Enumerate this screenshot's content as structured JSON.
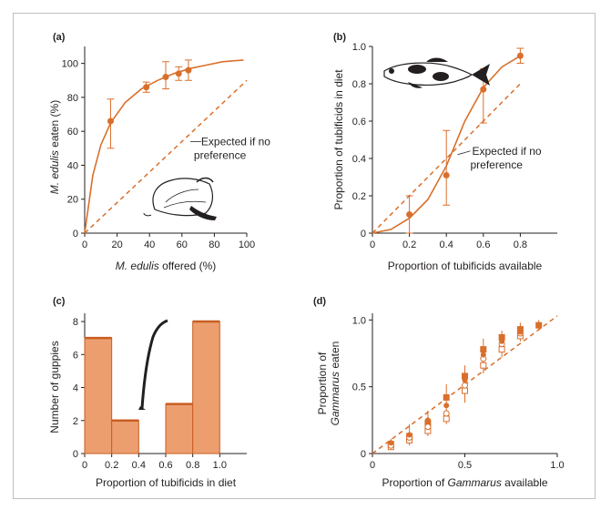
{
  "colors": {
    "accent": "#d96f2b",
    "bar_fill": "#ec9e6f",
    "bar_stroke": "#c95e22",
    "axis": "#231f20",
    "frame": "#bfbfbf"
  },
  "chart_data": [
    {
      "id": "a",
      "panel_label": "(a)",
      "type": "scatter",
      "xlabel_italic": "M. edulis",
      "xlabel_rest": " offered (%)",
      "ylabel_italic": "M. edulis",
      "ylabel_rest": " eaten (%)",
      "xlim": [
        0,
        100
      ],
      "ylim": [
        0,
        110
      ],
      "xticks": [
        0,
        20,
        40,
        60,
        80,
        100
      ],
      "yticks": [
        0,
        20,
        40,
        60,
        80,
        100
      ],
      "points": [
        {
          "x": 16,
          "y": 66,
          "lo": 50,
          "hi": 79
        },
        {
          "x": 38,
          "y": 86,
          "lo": 83,
          "hi": 89
        },
        {
          "x": 50,
          "y": 92,
          "lo": 85,
          "hi": 101
        },
        {
          "x": 58,
          "y": 94,
          "lo": 90,
          "hi": 98
        },
        {
          "x": 64,
          "y": 96,
          "lo": 90,
          "hi": 102
        }
      ],
      "fit_curve": [
        [
          0,
          0
        ],
        [
          5,
          34
        ],
        [
          10,
          52
        ],
        [
          16,
          65
        ],
        [
          25,
          77
        ],
        [
          35,
          85
        ],
        [
          45,
          90
        ],
        [
          55,
          94
        ],
        [
          65,
          97
        ],
        [
          75,
          99
        ],
        [
          85,
          101
        ],
        [
          98,
          102
        ]
      ],
      "expected_line": [
        [
          0,
          0
        ],
        [
          100,
          90
        ]
      ],
      "annotation_lines": [
        "Expected if no",
        "preference"
      ]
    },
    {
      "id": "b",
      "panel_label": "(b)",
      "type": "scatter",
      "xlabel": "Proportion of tubificids available",
      "ylabel": "Proportion of tubificids in diet",
      "xlim": [
        0,
        1.0
      ],
      "ylim": [
        0,
        1.0
      ],
      "xticks": [
        0,
        0.2,
        0.4,
        0.6,
        0.8
      ],
      "xticklabels": [
        "0",
        "0.2",
        "0.4",
        "0.6",
        "0.8"
      ],
      "yticks": [
        0,
        0.2,
        0.4,
        0.6,
        0.8,
        1.0
      ],
      "yticklabels": [
        "0",
        "0.2",
        "0.4",
        "0.6",
        "0.8",
        "1.0"
      ],
      "points": [
        {
          "x": 0.2,
          "y": 0.1,
          "lo": 0.0,
          "hi": 0.2
        },
        {
          "x": 0.4,
          "y": 0.31,
          "lo": 0.15,
          "hi": 0.55
        },
        {
          "x": 0.6,
          "y": 0.77,
          "lo": 0.59,
          "hi": 0.88
        },
        {
          "x": 0.8,
          "y": 0.95,
          "lo": 0.91,
          "hi": 0.99
        }
      ],
      "fit_curve": [
        [
          0,
          0
        ],
        [
          0.1,
          0.02
        ],
        [
          0.2,
          0.08
        ],
        [
          0.3,
          0.18
        ],
        [
          0.4,
          0.36
        ],
        [
          0.5,
          0.6
        ],
        [
          0.6,
          0.78
        ],
        [
          0.7,
          0.89
        ],
        [
          0.8,
          0.95
        ]
      ],
      "expected_line": [
        [
          0,
          0
        ],
        [
          0.8,
          0.8
        ]
      ],
      "annotation_lines": [
        "Expected if no",
        "preference"
      ]
    },
    {
      "id": "c",
      "panel_label": "(c)",
      "type": "bar",
      "xlabel": "Proportion of tubificids in diet",
      "ylabel": "Number of guppies",
      "xlim": [
        0,
        1.2
      ],
      "ylim": [
        0,
        8.5
      ],
      "xticks": [
        0,
        0.2,
        0.4,
        0.6,
        0.8,
        1.0
      ],
      "xticklabels": [
        "0",
        "0.2",
        "0.4",
        "0.6",
        "0.8",
        "1.0"
      ],
      "yticks": [
        0,
        2,
        4,
        6,
        8
      ],
      "bins": [
        {
          "from": 0.0,
          "to": 0.2,
          "count": 7
        },
        {
          "from": 0.2,
          "to": 0.4,
          "count": 2
        },
        {
          "from": 0.4,
          "to": 0.6,
          "count": 0
        },
        {
          "from": 0.6,
          "to": 0.8,
          "count": 3
        },
        {
          "from": 0.8,
          "to": 1.0,
          "count": 8
        }
      ]
    },
    {
      "id": "d",
      "panel_label": "(d)",
      "type": "scatter",
      "xlabel_pre": "Proportion of ",
      "xlabel_italic": "Gammarus",
      "xlabel_post": " available",
      "ylabel_line1": "Proportion of",
      "ylabel_line2_italic": "Gammarus",
      "ylabel_line2_rest": " eaten",
      "xlim": [
        0,
        1.0
      ],
      "ylim": [
        0,
        1.05
      ],
      "xticks": [
        0,
        0.5,
        1.0
      ],
      "xticklabels": [
        "0",
        "0.5",
        "1.0"
      ],
      "yticks": [
        0,
        0.5,
        1.0
      ],
      "yticklabels": [
        "0",
        "0.5",
        "1.0"
      ],
      "series": [
        {
          "name": "filled squares",
          "marker": "square-filled",
          "points": [
            [
              0.1,
              0.07
            ],
            [
              0.2,
              0.13
            ],
            [
              0.3,
              0.23
            ],
            [
              0.4,
              0.42
            ],
            [
              0.5,
              0.58
            ],
            [
              0.6,
              0.78
            ],
            [
              0.7,
              0.87
            ],
            [
              0.8,
              0.93
            ],
            [
              0.9,
              0.96
            ]
          ]
        },
        {
          "name": "open squares",
          "marker": "square-open",
          "points": [
            [
              0.1,
              0.05
            ],
            [
              0.2,
              0.1
            ],
            [
              0.3,
              0.17
            ],
            [
              0.4,
              0.26
            ],
            [
              0.5,
              0.47
            ],
            [
              0.6,
              0.66
            ],
            [
              0.7,
              0.78
            ],
            [
              0.8,
              0.88
            ]
          ]
        },
        {
          "name": "open circles",
          "marker": "circle-open",
          "points": [
            [
              0.1,
              0.06
            ],
            [
              0.2,
              0.12
            ],
            [
              0.3,
              0.2
            ],
            [
              0.4,
              0.3
            ],
            [
              0.5,
              0.51
            ],
            [
              0.6,
              0.71
            ],
            [
              0.7,
              0.82
            ],
            [
              0.8,
              0.9
            ]
          ]
        },
        {
          "name": "filled circles",
          "marker": "circle-filled",
          "points": [
            [
              0.1,
              0.08
            ],
            [
              0.2,
              0.14
            ],
            [
              0.3,
              0.25
            ],
            [
              0.4,
              0.36
            ],
            [
              0.5,
              0.55
            ],
            [
              0.6,
              0.74
            ],
            [
              0.7,
              0.84
            ],
            [
              0.8,
              0.91
            ]
          ]
        }
      ],
      "errorbars": [
        {
          "x": 0.1,
          "lo": 0.03,
          "hi": 0.11
        },
        {
          "x": 0.2,
          "lo": 0.06,
          "hi": 0.22
        },
        {
          "x": 0.3,
          "lo": 0.13,
          "hi": 0.32
        },
        {
          "x": 0.4,
          "lo": 0.22,
          "hi": 0.52
        },
        {
          "x": 0.5,
          "lo": 0.38,
          "hi": 0.66
        },
        {
          "x": 0.6,
          "lo": 0.6,
          "hi": 0.86
        },
        {
          "x": 0.7,
          "lo": 0.72,
          "hi": 0.92
        },
        {
          "x": 0.8,
          "lo": 0.84,
          "hi": 0.98
        },
        {
          "x": 0.9,
          "lo": 0.92,
          "hi": 1.0
        }
      ],
      "expected_line": [
        [
          0,
          0
        ],
        [
          1.0,
          1.03
        ]
      ]
    }
  ]
}
